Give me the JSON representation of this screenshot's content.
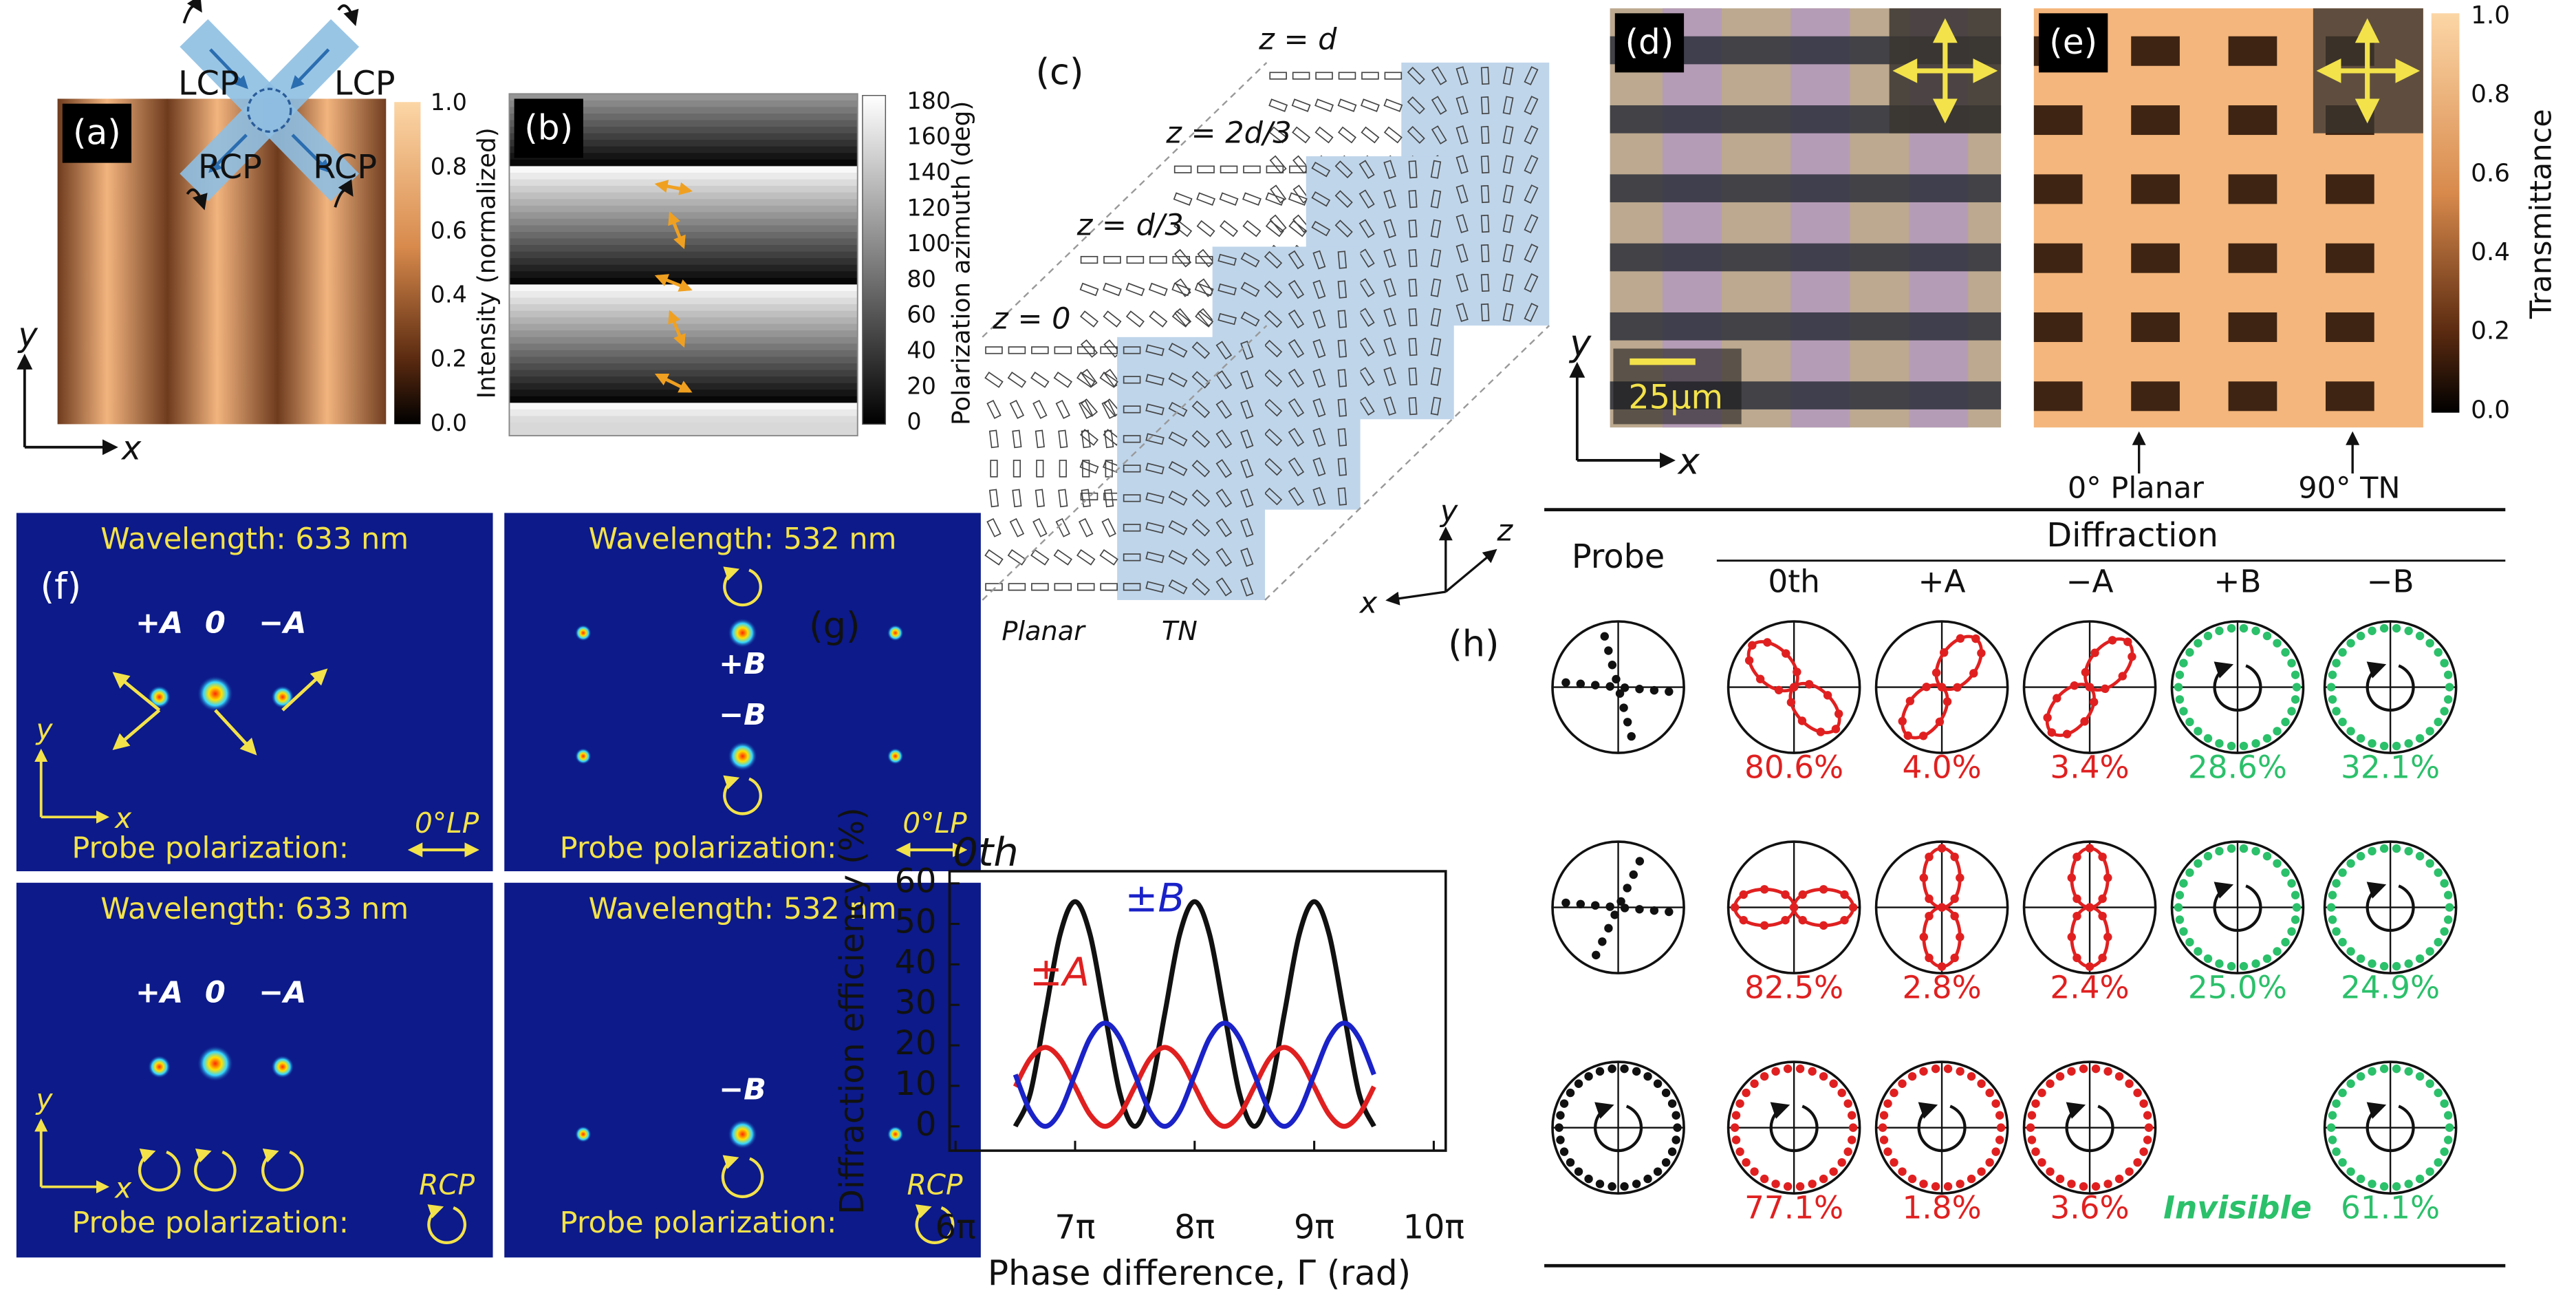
{
  "chart_data": {
    "type": "line",
    "panel_label": "(g)",
    "x_label": "Phase difference, Γ (rad)",
    "y_label": "Diffraction efficiency (%)",
    "x": [
      6.5,
      6.625,
      6.75,
      6.875,
      7,
      7.125,
      7.25,
      7.375,
      7.5,
      7.625,
      7.75,
      7.875,
      8,
      8.125,
      8.25,
      8.375,
      8.5,
      8.625,
      8.75,
      8.875,
      9,
      9.125,
      9.25,
      9.375,
      9.5
    ],
    "xlim": [
      5.95,
      10.1
    ],
    "xticks": [
      {
        "value": 6,
        "label": "6π"
      },
      {
        "value": 7,
        "label": "7π"
      },
      {
        "value": 8,
        "label": "8π"
      },
      {
        "value": 9,
        "label": "9π"
      },
      {
        "value": 10,
        "label": "10π"
      }
    ],
    "ylim": [
      -6,
      63
    ],
    "yticks": [
      0,
      10,
      20,
      30,
      40,
      50,
      60
    ],
    "series": [
      {
        "name": "0th",
        "color": "#111111",
        "values": [
          0,
          8.1,
          27.8,
          47.4,
          55.5,
          47.4,
          27.8,
          8.1,
          0,
          8.1,
          27.8,
          47.4,
          55.5,
          47.4,
          27.8,
          8.1,
          0,
          8.1,
          27.8,
          47.4,
          55.5,
          47.4,
          27.8,
          8.1,
          0
        ]
      },
      {
        "name": "±A",
        "color": "#e02020",
        "values": [
          9.8,
          16.7,
          19.5,
          16.7,
          9.8,
          2.9,
          0,
          2.9,
          9.8,
          16.7,
          19.5,
          16.7,
          9.8,
          2.9,
          0,
          2.9,
          9.8,
          16.7,
          19.5,
          16.7,
          9.8,
          2.9,
          0,
          2.9,
          9.8
        ]
      },
      {
        "name": "±B",
        "color": "#1a22c8",
        "values": [
          12.8,
          3.7,
          0,
          3.7,
          12.8,
          21.8,
          25.5,
          21.8,
          12.8,
          3.7,
          0,
          3.7,
          12.8,
          21.8,
          25.5,
          21.8,
          12.8,
          3.7,
          0,
          3.7,
          12.8,
          21.8,
          25.5,
          21.8,
          12.8
        ]
      }
    ]
  },
  "panel_a": {
    "label": "(a)",
    "beams": [
      "LCP",
      "LCP",
      "RCP",
      "RCP"
    ],
    "colorbar_label": "Intensity (normalized)",
    "colorbar_ticks": [
      "1.0",
      "0.8",
      "0.6",
      "0.4",
      "0.2",
      "0.0"
    ],
    "axes": {
      "x": "x",
      "y": "y"
    }
  },
  "panel_b": {
    "label": "(b)",
    "colorbar_label": "Polarization azimuth (deg)",
    "colorbar_ticks": [
      "180",
      "160",
      "140",
      "120",
      "100",
      "80",
      "60",
      "40",
      "20",
      "0"
    ]
  },
  "panel_c": {
    "label": "(c)",
    "layers": [
      "z = 0",
      "z = d/3",
      "z = 2d/3",
      "z = d"
    ],
    "regions": [
      "Planar",
      "TN"
    ],
    "axes": {
      "x": "x",
      "y": "y",
      "z": "z"
    }
  },
  "panel_d": {
    "label": "(d)",
    "scale_bar": "25μm",
    "axes": {
      "x": "x",
      "y": "y"
    }
  },
  "panel_e": {
    "label": "(e)",
    "colorbar_label": "Transmittance",
    "colorbar_ticks": [
      "1.0",
      "0.8",
      "0.6",
      "0.4",
      "0.2",
      "0.0"
    ],
    "markers": [
      "0° Planar",
      "90° TN"
    ]
  },
  "panel_f": {
    "label": "(f)",
    "views": [
      {
        "wavelength": "Wavelength: 633 nm",
        "orders": [
          "+A",
          "0",
          "−A"
        ],
        "probe_label": "Probe polarization:",
        "probe": "0°LP",
        "axes": {
          "x": "x",
          "y": "y"
        }
      },
      {
        "wavelength": "Wavelength: 532 nm",
        "orders": [
          "+B",
          "−B"
        ],
        "probe_label": "Probe polarization:",
        "probe": "0°LP"
      },
      {
        "wavelength": "Wavelength: 633 nm",
        "orders": [
          "+A",
          "0",
          "−A"
        ],
        "probe_label": "Probe polarization:",
        "probe": "RCP",
        "axes": {
          "x": "x",
          "y": "y"
        }
      },
      {
        "wavelength": "Wavelength: 532 nm",
        "orders": [
          "−B"
        ],
        "probe_label": "Probe polarization:",
        "probe": "RCP"
      }
    ]
  },
  "panel_h": {
    "label": "(h)",
    "header": {
      "probe": "Probe",
      "group": "Diffraction",
      "columns": [
        "0th",
        "+A",
        "−A",
        "+B",
        "−B"
      ]
    },
    "rows": [
      [
        "80.6%",
        "4.0%",
        "3.4%",
        "28.6%",
        "32.1%"
      ],
      [
        "82.5%",
        "2.8%",
        "2.4%",
        "25.0%",
        "24.9%"
      ],
      [
        "77.1%",
        "1.8%",
        "3.6%",
        "Invisible",
        "61.1%"
      ]
    ]
  }
}
